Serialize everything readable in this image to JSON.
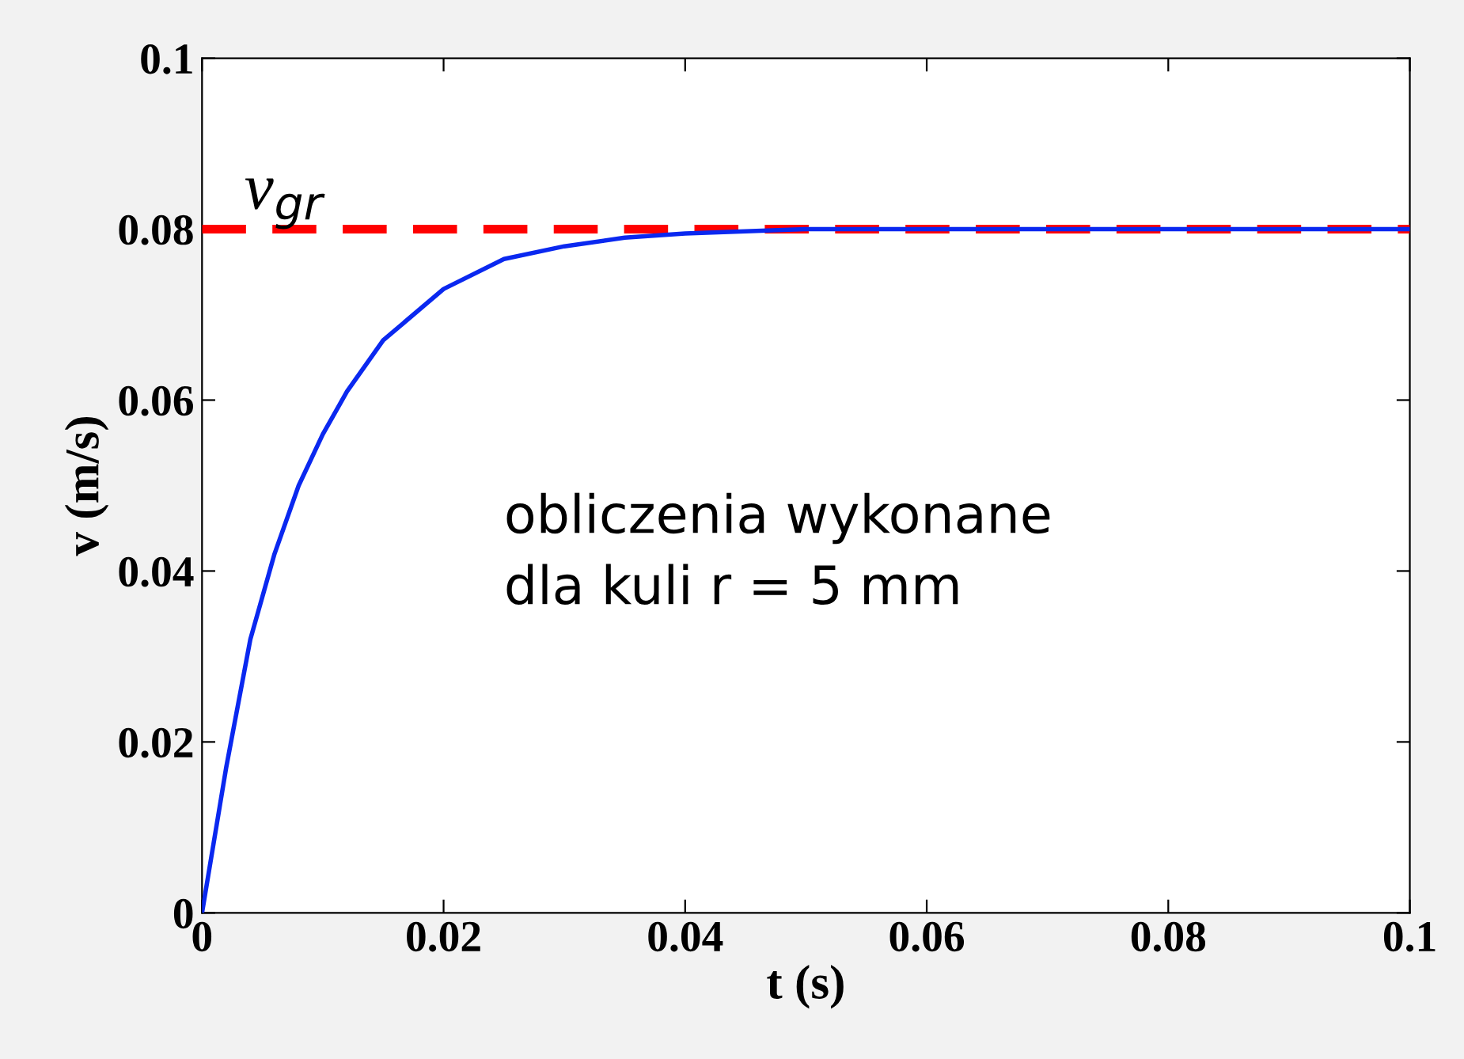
{
  "chart_data": {
    "type": "line",
    "xlabel": "t (s)",
    "ylabel": "v (m/s)",
    "x": [
      0,
      0.002,
      0.004,
      0.006,
      0.008,
      0.01,
      0.012,
      0.015,
      0.02,
      0.025,
      0.03,
      0.035,
      0.04,
      0.05,
      0.06,
      0.08,
      0.1
    ],
    "series": [
      {
        "color": "#0a28f0",
        "values": [
          0,
          0.017,
          0.032,
          0.042,
          0.05,
          0.056,
          0.061,
          0.067,
          0.073,
          0.0765,
          0.078,
          0.079,
          0.0795,
          0.08,
          0.08,
          0.08,
          0.08
        ]
      }
    ],
    "ref_lines": [
      {
        "axis": "y",
        "value": 0.08,
        "label": "v$_{gr}$",
        "color": "#ff0000",
        "line_style": "dashed"
      }
    ],
    "annotations": [
      "obliczenia wykonane\ndla kuli r = 5 mm"
    ],
    "xlim": [
      0,
      0.1
    ],
    "ylim": [
      0,
      0.1
    ],
    "xticks": [
      0,
      0.02,
      0.04,
      0.06,
      0.08,
      0.1
    ],
    "yticks": [
      0,
      0.02,
      0.04,
      0.06,
      0.08,
      0.1
    ],
    "grid": false,
    "legend": false,
    "line_style": "solid",
    "marker": "none"
  }
}
